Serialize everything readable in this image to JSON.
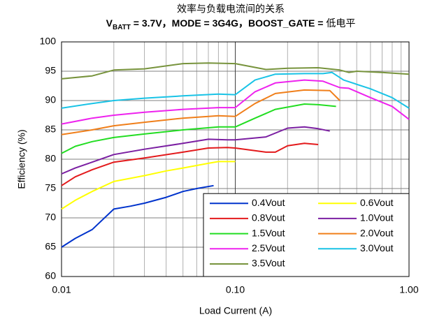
{
  "chart_data": {
    "type": "line",
    "title": "效率与负载电流间的关系",
    "subtitle": [
      "V",
      "BATT",
      " = 3.7V，MODE = 3G4G，BOOST_GATE = ",
      "低电平"
    ],
    "xlabel": "Load Current (A)",
    "ylabel": "Efficiency (%)",
    "xscale": "log",
    "xlim": [
      0.01,
      1
    ],
    "xticks": [
      0.01,
      {
        "value": 0.1,
        "label": "0.10"
      },
      {
        "value": 1,
        "label": "1.00"
      }
    ],
    "xminorticks": [
      0.02,
      0.03,
      0.04,
      0.05,
      0.06,
      0.07,
      0.08,
      0.09,
      0.2,
      0.3,
      0.4,
      0.5,
      0.6,
      0.7,
      0.8,
      0.9
    ],
    "ylim": [
      60,
      100
    ],
    "yticks": [
      60,
      65,
      70,
      75,
      80,
      85,
      90,
      95,
      100
    ],
    "grid": true,
    "legend": "lower right",
    "series": [
      {
        "name": "0.4Vout",
        "color": "#0033cc",
        "x": [
          0.01,
          0.012,
          0.015,
          0.02,
          0.025,
          0.03,
          0.04,
          0.05,
          0.06,
          0.075
        ],
        "values": [
          65,
          66.5,
          68,
          71.5,
          72,
          72.5,
          73.5,
          74.5,
          75,
          75.5
        ]
      },
      {
        "name": "0.6Vout",
        "color": "#ffff00",
        "x": [
          0.01,
          0.012,
          0.015,
          0.02,
          0.03,
          0.04,
          0.05,
          0.07,
          0.08,
          0.1
        ],
        "values": [
          71.5,
          73,
          74.5,
          76.2,
          77.2,
          78,
          78.5,
          79.3,
          79.6,
          79.6
        ]
      },
      {
        "name": "0.8Vout",
        "color": "#e31a1c",
        "x": [
          0.01,
          0.012,
          0.015,
          0.02,
          0.03,
          0.05,
          0.07,
          0.09,
          0.1,
          0.15,
          0.17,
          0.2,
          0.25,
          0.3
        ],
        "values": [
          75.5,
          77,
          78.2,
          79.5,
          80.2,
          81.2,
          81.9,
          82,
          81.9,
          81.2,
          81.2,
          82.3,
          82.7,
          82.5
        ]
      },
      {
        "name": "1.0Vout",
        "color": "#7b1fa2",
        "x": [
          0.01,
          0.012,
          0.015,
          0.02,
          0.03,
          0.05,
          0.07,
          0.09,
          0.1,
          0.15,
          0.2,
          0.25,
          0.3,
          0.35
        ],
        "values": [
          77.5,
          78.5,
          79.5,
          80.8,
          81.7,
          82.7,
          83.4,
          83.3,
          83.3,
          83.8,
          85.3,
          85.5,
          85.2,
          84.8
        ]
      },
      {
        "name": "1.5Vout",
        "color": "#22dd22",
        "x": [
          0.01,
          0.012,
          0.015,
          0.02,
          0.03,
          0.05,
          0.08,
          0.1,
          0.13,
          0.17,
          0.25,
          0.3,
          0.38
        ],
        "values": [
          81,
          82.2,
          83,
          83.7,
          84.3,
          85,
          85.5,
          85.5,
          87,
          88.5,
          89.4,
          89.3,
          89
        ]
      },
      {
        "name": "2.0Vout",
        "color": "#f07f1a",
        "x": [
          0.01,
          0.015,
          0.02,
          0.03,
          0.05,
          0.08,
          0.1,
          0.13,
          0.17,
          0.25,
          0.35,
          0.4
        ],
        "values": [
          84.2,
          85,
          85.7,
          86.3,
          87,
          87.4,
          87.3,
          89.5,
          91.2,
          91.8,
          91.7,
          90
        ]
      },
      {
        "name": "2.5Vout",
        "color": "#ee22ee",
        "x": [
          0.01,
          0.015,
          0.02,
          0.03,
          0.05,
          0.08,
          0.1,
          0.13,
          0.17,
          0.25,
          0.32,
          0.4,
          0.45,
          0.6,
          0.8,
          1
        ],
        "values": [
          86,
          87,
          87.5,
          88,
          88.5,
          88.8,
          88.8,
          91.5,
          93,
          93.5,
          93.3,
          92.2,
          92.1,
          90.5,
          89,
          86.8
        ]
      },
      {
        "name": "3.0Vout",
        "color": "#19c3e6",
        "x": [
          0.01,
          0.015,
          0.02,
          0.03,
          0.05,
          0.08,
          0.1,
          0.13,
          0.17,
          0.25,
          0.32,
          0.36,
          0.42,
          0.6,
          0.8,
          1
        ],
        "values": [
          88.7,
          89.5,
          90,
          90.4,
          90.8,
          91.1,
          91,
          93.5,
          94.5,
          94.6,
          94.6,
          94.8,
          93.5,
          92,
          90.5,
          88.7
        ]
      },
      {
        "name": "3.5Vout",
        "color": "#77933c",
        "x": [
          0.01,
          0.015,
          0.02,
          0.03,
          0.05,
          0.07,
          0.1,
          0.15,
          0.2,
          0.3,
          0.4,
          0.45,
          0.5,
          0.7,
          1
        ],
        "values": [
          93.7,
          94.2,
          95.2,
          95.4,
          96.3,
          96.4,
          96.3,
          95.3,
          95.5,
          95.6,
          95.2,
          94.8,
          95,
          94.8,
          94.5
        ]
      }
    ]
  }
}
